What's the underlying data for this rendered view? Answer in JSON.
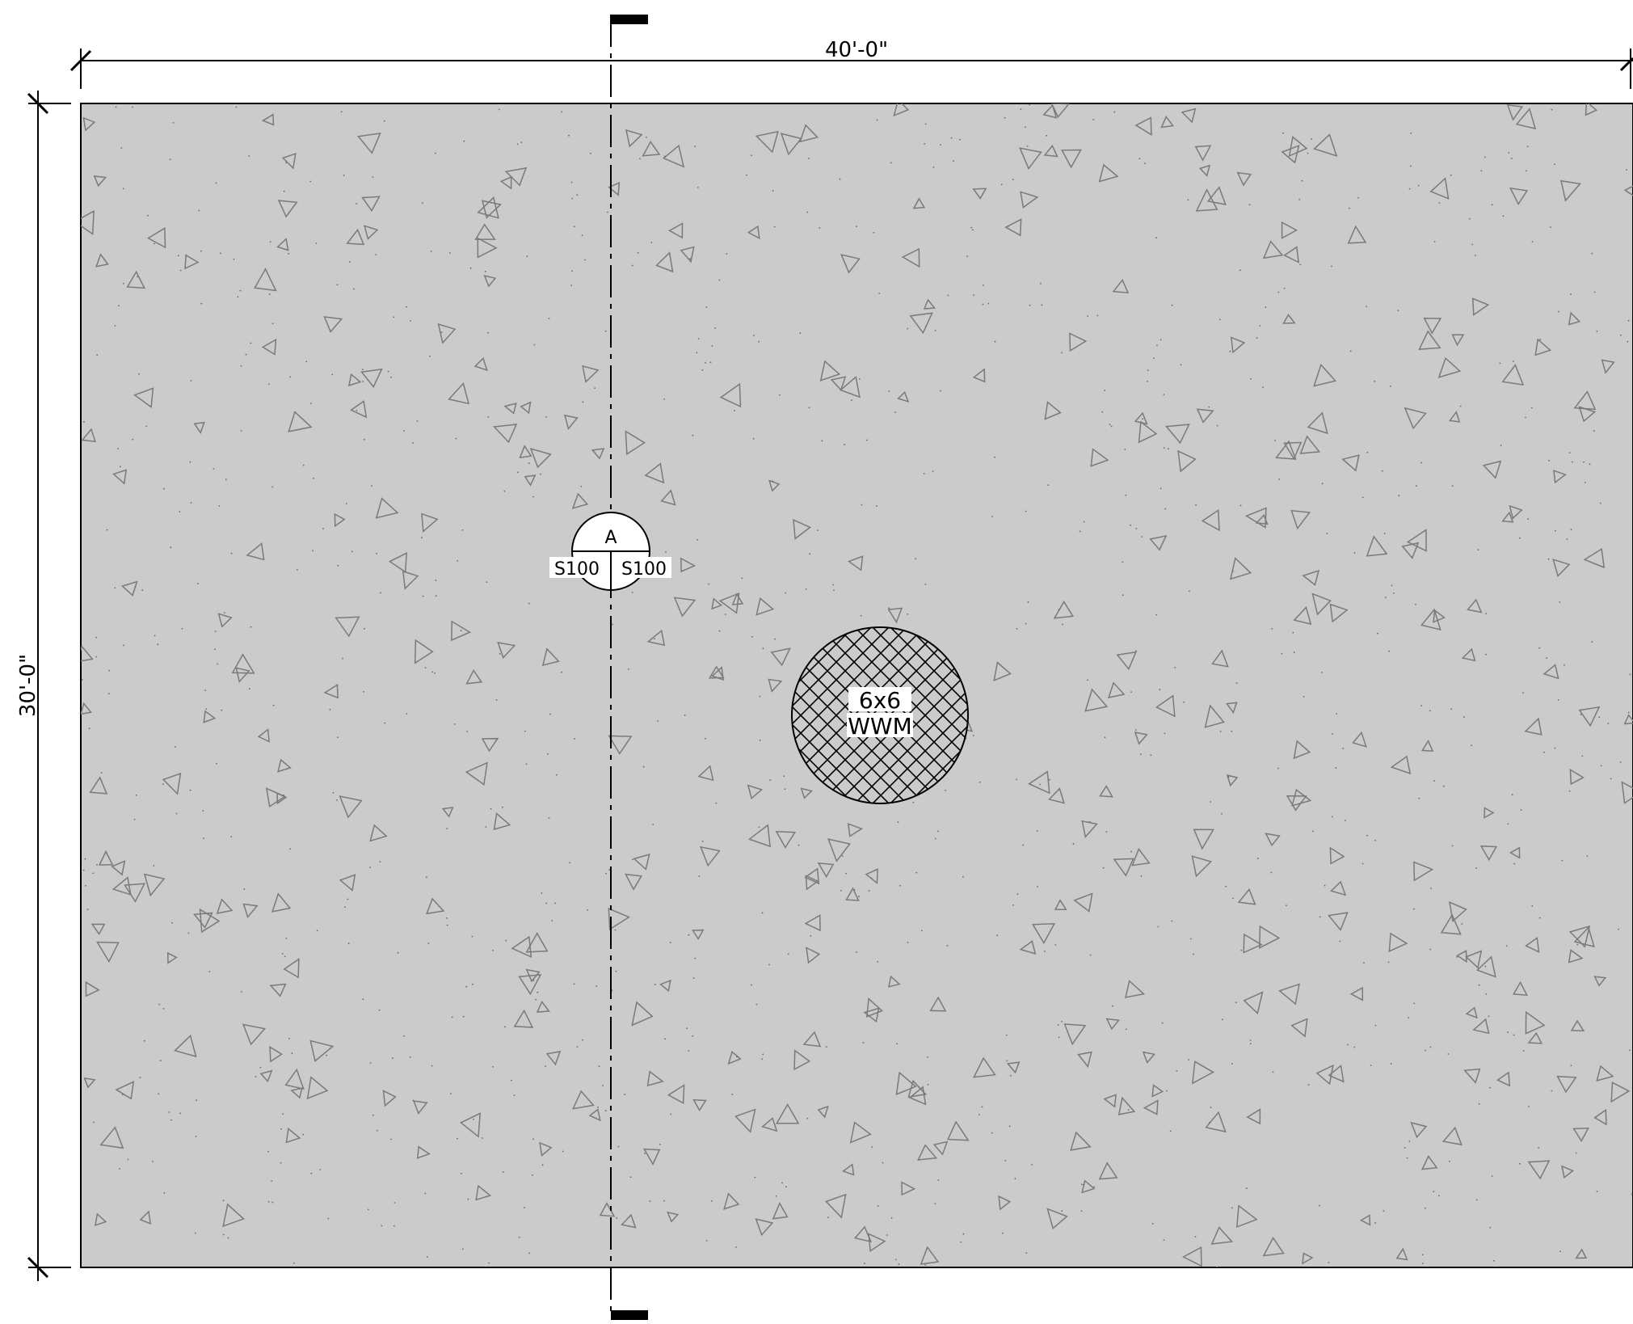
{
  "dimensions": {
    "width_label": "40'-0\"",
    "height_label": "30'-0\""
  },
  "section_callout": {
    "letter": "A",
    "sheet_left": "S100",
    "sheet_right": "S100"
  },
  "mesh_note": {
    "line1": "6x6",
    "line2": "WWM"
  },
  "colors": {
    "slab_fill": "#cbcbcb",
    "line": "#000000",
    "aggregate_stroke": "#7a7a7a"
  }
}
